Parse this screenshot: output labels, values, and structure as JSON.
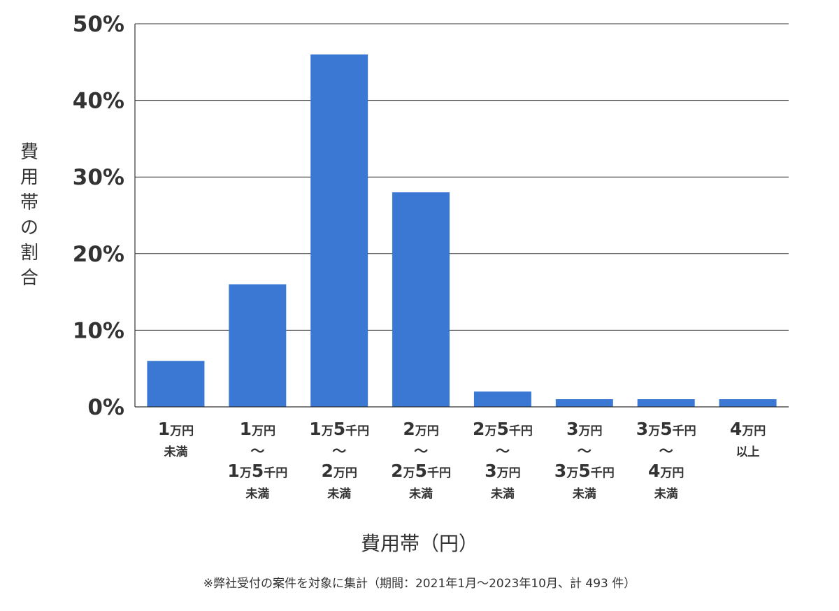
{
  "chart_data": {
    "type": "bar",
    "title": "",
    "ylabel": "費用帯の割合",
    "xlabel": "費用帯（円）",
    "ylim": [
      0,
      50
    ],
    "yticks": [
      "0%",
      "10%",
      "20%",
      "30%",
      "40%",
      "50%"
    ],
    "grid": true,
    "bar_color": "#3b78d4",
    "categories": [
      [
        [
          {
            "t": "1",
            "b": true
          },
          {
            "t": "万円",
            "b": false
          }
        ],
        [
          {
            "t": "未満",
            "b": false
          }
        ]
      ],
      [
        [
          {
            "t": "1",
            "b": true
          },
          {
            "t": "万円",
            "b": false
          }
        ],
        [
          {
            "t": "〜",
            "b": false
          }
        ],
        [
          {
            "t": "1",
            "b": true
          },
          {
            "t": "万",
            "b": false
          },
          {
            "t": "5",
            "b": true
          },
          {
            "t": "千円",
            "b": false
          }
        ],
        [
          {
            "t": "未満",
            "b": false
          }
        ]
      ],
      [
        [
          {
            "t": "1",
            "b": true
          },
          {
            "t": "万",
            "b": false
          },
          {
            "t": "5",
            "b": true
          },
          {
            "t": "千円",
            "b": false
          }
        ],
        [
          {
            "t": "〜",
            "b": false
          }
        ],
        [
          {
            "t": "2",
            "b": true
          },
          {
            "t": "万円",
            "b": false
          }
        ],
        [
          {
            "t": "未満",
            "b": false
          }
        ]
      ],
      [
        [
          {
            "t": "2",
            "b": true
          },
          {
            "t": "万円",
            "b": false
          }
        ],
        [
          {
            "t": "〜",
            "b": false
          }
        ],
        [
          {
            "t": "2",
            "b": true
          },
          {
            "t": "万",
            "b": false
          },
          {
            "t": "5",
            "b": true
          },
          {
            "t": "千円",
            "b": false
          }
        ],
        [
          {
            "t": "未満",
            "b": false
          }
        ]
      ],
      [
        [
          {
            "t": "2",
            "b": true
          },
          {
            "t": "万",
            "b": false
          },
          {
            "t": "5",
            "b": true
          },
          {
            "t": "千円",
            "b": false
          }
        ],
        [
          {
            "t": "〜",
            "b": false
          }
        ],
        [
          {
            "t": "3",
            "b": true
          },
          {
            "t": "万円",
            "b": false
          }
        ],
        [
          {
            "t": "未満",
            "b": false
          }
        ]
      ],
      [
        [
          {
            "t": "3",
            "b": true
          },
          {
            "t": "万円",
            "b": false
          }
        ],
        [
          {
            "t": "〜",
            "b": false
          }
        ],
        [
          {
            "t": "3",
            "b": true
          },
          {
            "t": "万",
            "b": false
          },
          {
            "t": "5",
            "b": true
          },
          {
            "t": "千円",
            "b": false
          }
        ],
        [
          {
            "t": "未満",
            "b": false
          }
        ]
      ],
      [
        [
          {
            "t": "3",
            "b": true
          },
          {
            "t": "万",
            "b": false
          },
          {
            "t": "5",
            "b": true
          },
          {
            "t": "千円",
            "b": false
          }
        ],
        [
          {
            "t": "〜",
            "b": false
          }
        ],
        [
          {
            "t": "4",
            "b": true
          },
          {
            "t": "万円",
            "b": false
          }
        ],
        [
          {
            "t": "未満",
            "b": false
          }
        ]
      ],
      [
        [
          {
            "t": "4",
            "b": true
          },
          {
            "t": "万円",
            "b": false
          }
        ],
        [
          {
            "t": "以上",
            "b": false
          }
        ]
      ]
    ],
    "values": [
      6,
      16,
      46,
      28,
      2,
      1,
      1,
      1
    ]
  },
  "footnote": "※弊社受付の案件を対象に集計（期間：2021年1月〜2023年10月、計 493 件）"
}
